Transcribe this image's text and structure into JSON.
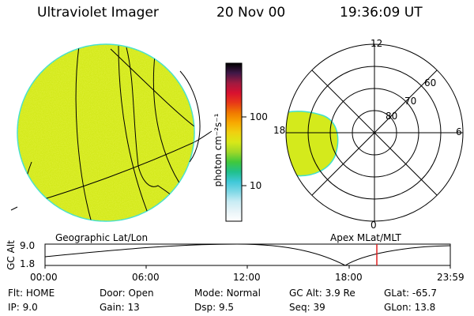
{
  "header": {
    "instrument": "Ultraviolet Imager",
    "date": "20 Nov 00",
    "time": "19:36:09 UT"
  },
  "colorbar": {
    "unit_label": "photon cm⁻²s⁻¹",
    "tick_labels": [
      "100",
      "10"
    ],
    "tick_values": [
      100,
      10
    ],
    "gradient_colors": [
      "#ffffff",
      "#e8f4f8",
      "#c8ecf4",
      "#7fd8e6",
      "#3fc8d8",
      "#20c08c",
      "#40c83c",
      "#a0d828",
      "#d8e818",
      "#f0d010",
      "#f8a800",
      "#f07800",
      "#e83818",
      "#d81030",
      "#a01a40",
      "#401848",
      "#000000"
    ]
  },
  "panels": {
    "geographic": {
      "label": "Geographic Lat/Lon",
      "fill_color": "#d4ea1c",
      "limb_color": "#40e0d0"
    },
    "polar": {
      "label": "Apex MLat/MLT",
      "lat_labels": [
        "80",
        "70",
        "60"
      ],
      "mlt_labels": {
        "top": "12",
        "right": "6",
        "bottom": "0",
        "left": "18"
      },
      "fill_color": "#d4ea1c"
    }
  },
  "altitude_plot": {
    "ylabel": "GC Alt",
    "yticks": [
      "9.0",
      "1.8"
    ],
    "xticks": [
      "00:00",
      "06:00",
      "12:00",
      "18:00",
      "23:59"
    ],
    "marker_color": "#e02020",
    "marker_time": "19:36"
  },
  "status": {
    "row1": [
      {
        "label": "Flt:",
        "value": "HOME"
      },
      {
        "label": "Door:",
        "value": "Open"
      },
      {
        "label": "Mode:",
        "value": "Normal"
      },
      {
        "label": "GC Alt:",
        "value": "3.9 Re"
      },
      {
        "label": "GLat:",
        "value": "-65.7"
      }
    ],
    "row2": [
      {
        "label": "IP:",
        "value": "9.0"
      },
      {
        "label": "Gain:",
        "value": "13"
      },
      {
        "label": "Dsp:",
        "value": "9.5"
      },
      {
        "label": "Seq:",
        "value": "39"
      },
      {
        "label": "GLon:",
        "value": "13.8"
      }
    ]
  }
}
